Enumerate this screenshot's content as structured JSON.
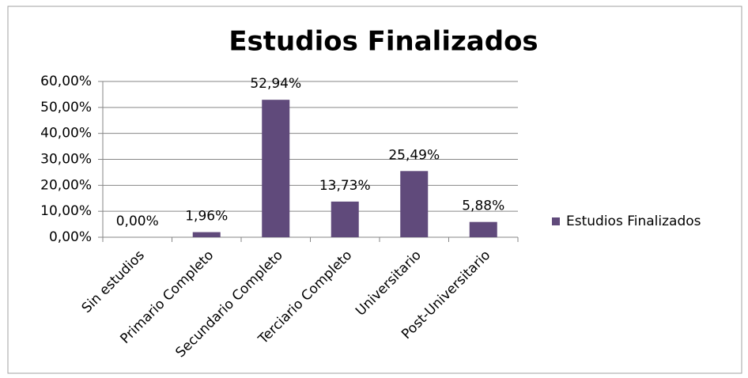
{
  "chart_data": {
    "type": "bar",
    "title": "Estudios Finalizados",
    "categories": [
      "Sin estudios",
      "Primario Completo",
      "Secundario Completo",
      "Terciario Completo",
      "Universitario",
      "Post-Universitario"
    ],
    "series": [
      {
        "name": "Estudios Finalizados",
        "color": "#604a7b",
        "values": [
          0,
          1.96,
          52.94,
          13.73,
          25.49,
          5.88
        ],
        "value_labels": [
          "0,00%",
          "1,96%",
          "52,94%",
          "13,73%",
          "25,49%",
          "5,88%"
        ]
      }
    ],
    "ylim": [
      0,
      60
    ],
    "yticks": [
      {
        "value": 0,
        "label": "0,00%"
      },
      {
        "value": 10,
        "label": "10,00%"
      },
      {
        "value": 20,
        "label": "20,00%"
      },
      {
        "value": 30,
        "label": "30,00%"
      },
      {
        "value": 40,
        "label": "40,00%"
      },
      {
        "value": 50,
        "label": "50,00%"
      },
      {
        "value": 60,
        "label": "60,00%"
      }
    ],
    "grid": true,
    "legend": "right"
  }
}
